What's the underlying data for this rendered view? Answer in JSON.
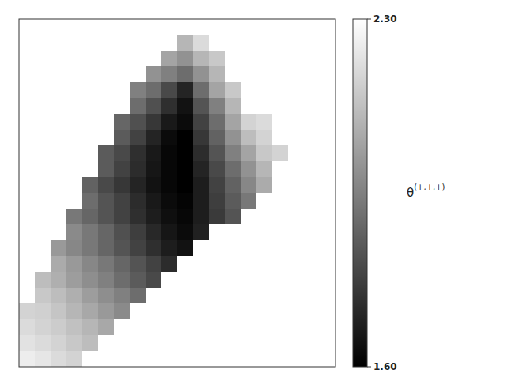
{
  "chart_data": {
    "type": "heatmap",
    "color": "gray",
    "tick_labels": false,
    "colorbar_label": "θ(+,+,+)",
    "colorbar_range": [
      1.6,
      2.3
    ],
    "colorbar_ticks": [
      {
        "value": 1.6,
        "label": "1.60"
      },
      {
        "value": 2.3,
        "label": "2.30"
      }
    ],
    "cells": [
      [
        null,
        null,
        null,
        null,
        null,
        null,
        null,
        null,
        null,
        null,
        null,
        null,
        null,
        null,
        null,
        null,
        null,
        null,
        null,
        null
      ],
      [
        null,
        null,
        null,
        null,
        null,
        null,
        null,
        null,
        null,
        null,
        2.1,
        2.2,
        null,
        null,
        null,
        null,
        null,
        null,
        null,
        null
      ],
      [
        null,
        null,
        null,
        null,
        null,
        null,
        null,
        null,
        null,
        2.05,
        2.0,
        2.1,
        2.15,
        null,
        null,
        null,
        null,
        null,
        null,
        null
      ],
      [
        null,
        null,
        null,
        null,
        null,
        null,
        null,
        null,
        2.0,
        1.95,
        1.9,
        2.0,
        2.1,
        null,
        null,
        null,
        null,
        null,
        null,
        null
      ],
      [
        null,
        null,
        null,
        null,
        null,
        null,
        null,
        1.95,
        1.9,
        1.8,
        1.7,
        1.9,
        2.05,
        2.15,
        null,
        null,
        null,
        null,
        null,
        null
      ],
      [
        null,
        null,
        null,
        null,
        null,
        null,
        null,
        1.9,
        1.82,
        1.73,
        1.65,
        1.83,
        1.95,
        2.1,
        null,
        null,
        null,
        null,
        null,
        null
      ],
      [
        null,
        null,
        null,
        null,
        null,
        null,
        1.88,
        1.82,
        1.75,
        1.67,
        1.63,
        1.78,
        1.9,
        2.05,
        2.18,
        2.2,
        null,
        null,
        null,
        null
      ],
      [
        null,
        null,
        null,
        null,
        null,
        null,
        1.85,
        1.78,
        1.7,
        1.63,
        1.6,
        1.75,
        1.87,
        2.0,
        2.12,
        2.18,
        null,
        null,
        null,
        null
      ],
      [
        null,
        null,
        null,
        null,
        null,
        1.85,
        1.8,
        1.73,
        1.67,
        1.62,
        1.6,
        1.72,
        1.83,
        1.95,
        2.05,
        2.15,
        2.18,
        null,
        null,
        null
      ],
      [
        null,
        null,
        null,
        null,
        null,
        1.85,
        1.78,
        1.72,
        1.66,
        1.62,
        1.6,
        1.7,
        1.8,
        1.9,
        2.0,
        2.1,
        null,
        null,
        null,
        null
      ],
      [
        null,
        null,
        null,
        null,
        1.87,
        1.8,
        1.75,
        1.7,
        1.65,
        1.62,
        1.6,
        1.68,
        1.78,
        1.87,
        1.97,
        2.07,
        null,
        null,
        null,
        null
      ],
      [
        null,
        null,
        null,
        null,
        1.9,
        1.83,
        1.78,
        1.72,
        1.67,
        1.63,
        1.61,
        1.68,
        1.77,
        1.85,
        1.93,
        null,
        null,
        null,
        null,
        null
      ],
      [
        null,
        null,
        null,
        1.93,
        1.88,
        1.83,
        1.78,
        1.73,
        1.68,
        1.64,
        1.62,
        1.68,
        1.76,
        1.83,
        null,
        null,
        null,
        null,
        null,
        null
      ],
      [
        null,
        null,
        null,
        1.98,
        1.93,
        1.88,
        1.82,
        1.77,
        1.71,
        1.66,
        1.63,
        1.69,
        null,
        null,
        null,
        null,
        null,
        null,
        null,
        null
      ],
      [
        null,
        null,
        2.02,
        1.97,
        1.93,
        1.88,
        1.83,
        1.78,
        1.73,
        1.68,
        1.65,
        null,
        null,
        null,
        null,
        null,
        null,
        null,
        null,
        null
      ],
      [
        null,
        null,
        2.07,
        2.02,
        1.97,
        1.93,
        1.88,
        1.83,
        1.78,
        1.72,
        null,
        null,
        null,
        null,
        null,
        null,
        null,
        null,
        null,
        null
      ],
      [
        null,
        2.12,
        2.08,
        2.03,
        1.99,
        1.95,
        1.9,
        1.85,
        1.8,
        null,
        null,
        null,
        null,
        null,
        null,
        null,
        null,
        null,
        null,
        null
      ],
      [
        null,
        2.15,
        2.12,
        2.08,
        2.03,
        1.99,
        1.95,
        1.9,
        null,
        null,
        null,
        null,
        null,
        null,
        null,
        null,
        null,
        null,
        null,
        null
      ],
      [
        2.18,
        2.17,
        2.14,
        2.1,
        2.06,
        2.02,
        1.98,
        null,
        null,
        null,
        null,
        null,
        null,
        null,
        null,
        null,
        null,
        null,
        null,
        null
      ],
      [
        2.2,
        2.18,
        2.16,
        2.13,
        2.1,
        2.06,
        null,
        null,
        null,
        null,
        null,
        null,
        null,
        null,
        null,
        null,
        null,
        null,
        null,
        null
      ],
      [
        2.22,
        2.2,
        2.18,
        2.15,
        2.12,
        null,
        null,
        null,
        null,
        null,
        null,
        null,
        null,
        null,
        null,
        null,
        null,
        null,
        null,
        null
      ],
      [
        2.25,
        2.23,
        2.2,
        2.18,
        null,
        null,
        null,
        null,
        null,
        null,
        null,
        null,
        null,
        null,
        null,
        null,
        null,
        null,
        null,
        null
      ]
    ]
  }
}
